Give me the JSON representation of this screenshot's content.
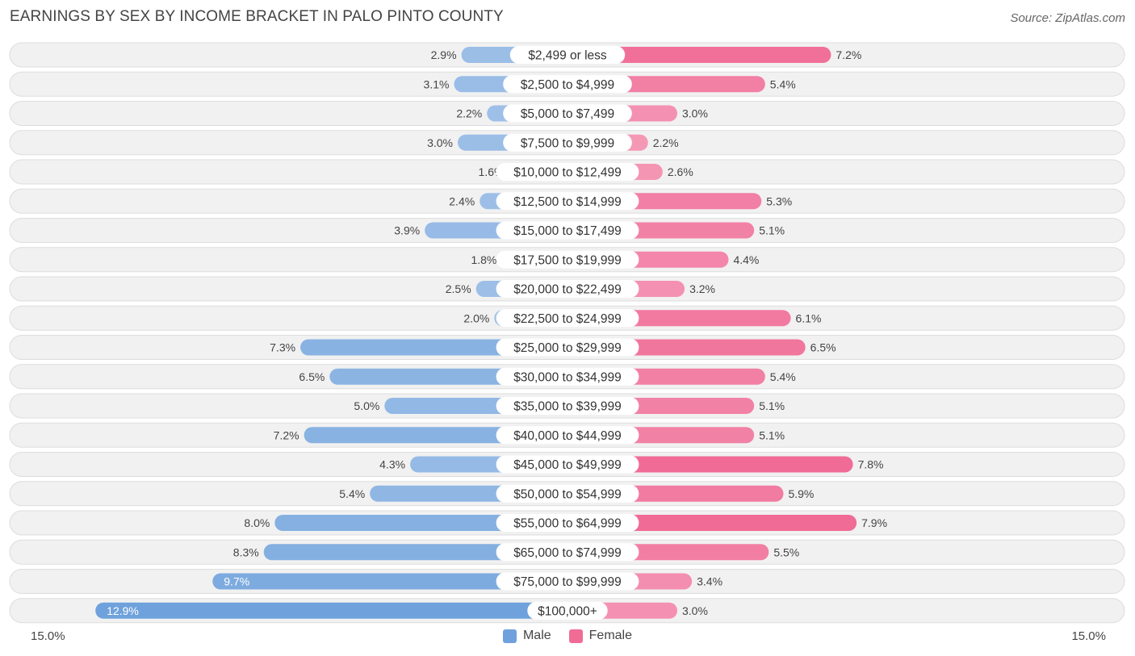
{
  "title": "EARNINGS BY SEX BY INCOME BRACKET IN PALO PINTO COUNTY",
  "source": "Source: ZipAtlas.com",
  "colors": {
    "male": "#6fa2dc",
    "male_light": "#a8c6ea",
    "female": "#f06b96",
    "female_light": "#f7a9c3",
    "row_bg": "#f1f1f1",
    "row_border": "#dddddd"
  },
  "chart_data": {
    "type": "bar",
    "orientation": "horizontal-diverging",
    "title": "EARNINGS BY SEX BY INCOME BRACKET IN PALO PINTO COUNTY",
    "categories": [
      "$2,499 or less",
      "$2,500 to $4,999",
      "$5,000 to $7,499",
      "$7,500 to $9,999",
      "$10,000 to $12,499",
      "$12,500 to $14,999",
      "$15,000 to $17,499",
      "$17,500 to $19,999",
      "$20,000 to $22,499",
      "$22,500 to $24,999",
      "$25,000 to $29,999",
      "$30,000 to $34,999",
      "$35,000 to $39,999",
      "$40,000 to $44,999",
      "$45,000 to $49,999",
      "$50,000 to $54,999",
      "$55,000 to $64,999",
      "$65,000 to $74,999",
      "$75,000 to $99,999",
      "$100,000+"
    ],
    "series": [
      {
        "name": "Male",
        "values": [
          2.9,
          3.1,
          2.2,
          3.0,
          1.6,
          2.4,
          3.9,
          1.8,
          2.5,
          2.0,
          7.3,
          6.5,
          5.0,
          7.2,
          4.3,
          5.4,
          8.0,
          8.3,
          9.7,
          12.9
        ],
        "labels": [
          "2.9%",
          "3.1%",
          "2.2%",
          "3.0%",
          "1.6%",
          "2.4%",
          "3.9%",
          "1.8%",
          "2.5%",
          "2.0%",
          "7.3%",
          "6.5%",
          "5.0%",
          "7.2%",
          "4.3%",
          "5.4%",
          "8.0%",
          "8.3%",
          "9.7%",
          "12.9%"
        ]
      },
      {
        "name": "Female",
        "values": [
          7.2,
          5.4,
          3.0,
          2.2,
          2.6,
          5.3,
          5.1,
          4.4,
          3.2,
          6.1,
          6.5,
          5.4,
          5.1,
          5.1,
          7.8,
          5.9,
          7.9,
          5.5,
          3.4,
          3.0
        ],
        "labels": [
          "7.2%",
          "5.4%",
          "3.0%",
          "2.2%",
          "2.6%",
          "5.3%",
          "5.1%",
          "4.4%",
          "3.2%",
          "6.1%",
          "6.5%",
          "5.4%",
          "5.1%",
          "5.1%",
          "7.8%",
          "5.9%",
          "7.9%",
          "5.5%",
          "3.4%",
          "3.0%"
        ]
      }
    ],
    "xlim": [
      -15,
      15
    ],
    "axis_min_label": "15.0%",
    "axis_max_label": "15.0%",
    "legend": [
      "Male",
      "Female"
    ],
    "legend_position": "bottom-center"
  }
}
